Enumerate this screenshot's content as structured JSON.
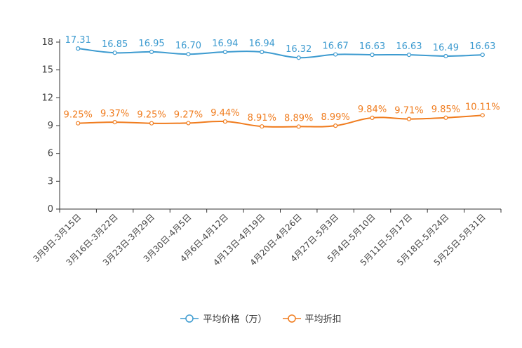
{
  "chart_data": {
    "type": "line",
    "title": "",
    "xlabel": "",
    "ylabel": "",
    "ylim": [
      0,
      18
    ],
    "yticks": [
      0,
      3,
      6,
      9,
      12,
      15,
      18
    ],
    "categories": [
      "3月9日-3月15日",
      "3月16日-3月22日",
      "3月23日-3月29日",
      "3月30日-4月5日",
      "4月6日-4月12日",
      "4月13日-4月19日",
      "4月20日-4月26日",
      "4月27日-5月3日",
      "5月4日-5月10日",
      "5月11日-5月17日",
      "5月18日-5月24日",
      "5月25日-5月31日"
    ],
    "series": [
      {
        "name": "平均价格（万）",
        "color": "#3d9bd0",
        "values": [
          17.31,
          16.85,
          16.95,
          16.7,
          16.94,
          16.94,
          16.32,
          16.67,
          16.63,
          16.63,
          16.49,
          16.63
        ],
        "labels": [
          "17.31",
          "16.85",
          "16.95",
          "16.70",
          "16.94",
          "16.94",
          "16.32",
          "16.67",
          "16.63",
          "16.63",
          "16.49",
          "16.63"
        ]
      },
      {
        "name": "平均折扣",
        "color": "#f07c1e",
        "values": [
          9.25,
          9.37,
          9.25,
          9.27,
          9.44,
          8.91,
          8.89,
          8.99,
          9.84,
          9.71,
          9.85,
          10.11
        ],
        "labels": [
          "9.25%",
          "9.37%",
          "9.25%",
          "9.27%",
          "9.44%",
          "8.91%",
          "8.89%",
          "8.99%",
          "9.84%",
          "9.71%",
          "9.85%",
          "10.11%"
        ]
      }
    ],
    "legend_position": "bottom",
    "grid": false
  }
}
